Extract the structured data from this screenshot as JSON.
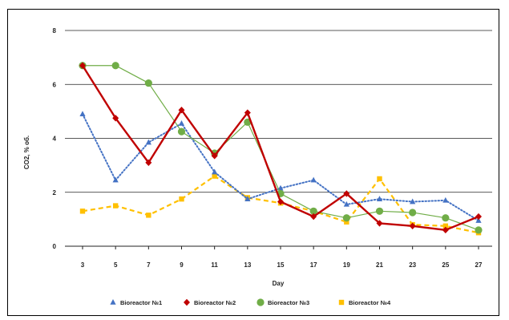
{
  "chart_data": {
    "type": "line",
    "title": "",
    "xlabel": "Day",
    "ylabel": "CO2, % об.",
    "x": [
      3,
      5,
      7,
      9,
      11,
      13,
      15,
      17,
      19,
      21,
      23,
      25,
      27
    ],
    "ylim": [
      0,
      8
    ],
    "yticks": [
      0,
      2,
      4,
      6,
      8
    ],
    "grid": "horizontal",
    "legend_position": "bottom",
    "series": [
      {
        "name": "Bioreactor №1",
        "color": "#4472c4",
        "line": "dotted",
        "marker": "triangle",
        "values": [
          4.9,
          2.45,
          3.85,
          4.55,
          2.75,
          1.75,
          2.15,
          2.45,
          1.55,
          1.75,
          1.65,
          1.7,
          0.95
        ]
      },
      {
        "name": "Bioreactor №2",
        "color": "#c00000",
        "line": "solid",
        "marker": "diamond",
        "values": [
          6.7,
          4.75,
          3.1,
          5.05,
          3.35,
          4.95,
          1.65,
          1.1,
          1.95,
          0.85,
          0.75,
          0.6,
          1.1
        ]
      },
      {
        "name": "Bioreactor №3",
        "color": "#70ad47",
        "line": "thin",
        "marker": "circle",
        "values": [
          6.7,
          6.7,
          6.05,
          4.25,
          3.45,
          4.6,
          1.95,
          1.3,
          1.05,
          1.3,
          1.25,
          1.05,
          0.6
        ]
      },
      {
        "name": "Bioreactor №4",
        "color": "#ffc000",
        "line": "dashed",
        "marker": "square",
        "values": [
          1.3,
          1.5,
          1.15,
          1.75,
          2.6,
          1.8,
          1.6,
          1.3,
          0.9,
          2.5,
          0.8,
          0.75,
          0.5
        ]
      }
    ]
  }
}
